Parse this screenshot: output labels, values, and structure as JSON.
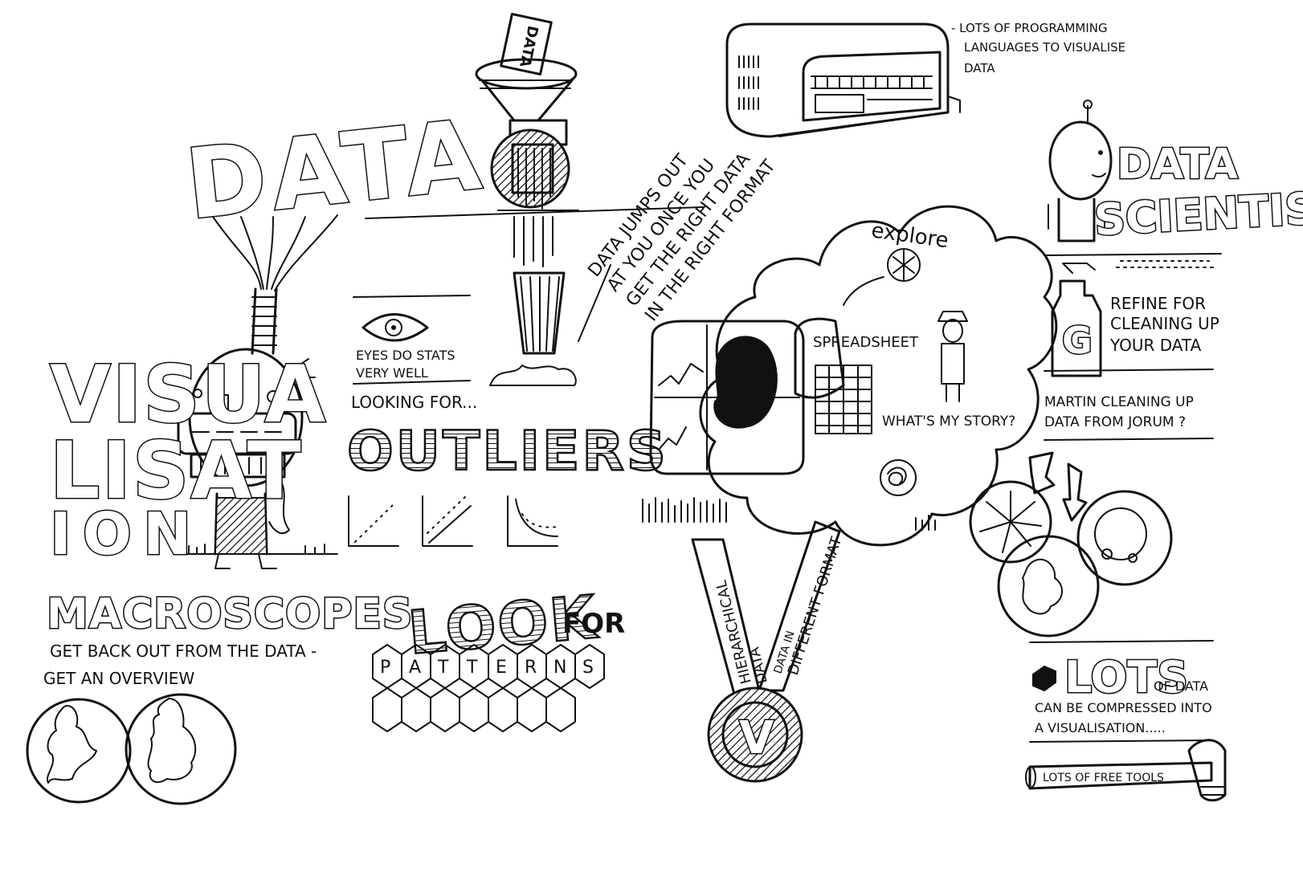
{
  "labels": {
    "data_big": "DATA",
    "data_label": "DATA",
    "visualisation_1": "VISUA",
    "visualisation_2": "LISAT",
    "visualisation_3": "ION",
    "eyes_1": "EYES DO STATS",
    "eyes_2": "VERY WELL",
    "looking_for": "LOOKING FOR...",
    "outliers": "OUTLIERS",
    "data_jumps_1": "DATA JUMPS OUT",
    "data_jumps_2": "AT YOU ONCE YOU",
    "data_jumps_3": "GET THE RIGHT DATA",
    "data_jumps_4": "IN THE RIGHT FORMAT",
    "languages_1": "- LOTS OF PROGRAMMING",
    "languages_2": "LANGUAGES TO VISUALISE",
    "languages_3": "DATA",
    "data_scientist_1": "DATA",
    "data_scientist_2": "SCIENTIST",
    "explore": "explore",
    "spreadsheet": "SPREADSHEET",
    "whats_my_story": "WHAT'S MY STORY?",
    "refine_1": "REFINE FOR",
    "refine_2": "CLEANING UP",
    "refine_3": "YOUR DATA",
    "refine_letter": "G",
    "martin_1": "MARTIN CLEANING UP",
    "martin_2": "DATA FROM JORUM ?",
    "macroscopes": "MACROSCOPES",
    "back_out_1": "GET BACK OUT FROM THE DATA -",
    "back_out_2": "GET AN OVERVIEW",
    "look_for_1": "LOOK",
    "look_for_2": "FOR",
    "patterns_letters": [
      "P",
      "A",
      "T",
      "T",
      "E",
      "R",
      "N",
      "S"
    ],
    "ribbon_left_1": "HIERARCHICAL",
    "ribbon_left_2": "DATA",
    "ribbon_right_1": "DATA IN",
    "ribbon_right_2": "DIFFERENT FORMAT",
    "medal_letter": "V",
    "lots_big": "LOTS",
    "lots_of_data": "OF DATA",
    "compressed_1": "CAN BE COMPRESSED INTO",
    "compressed_2": "A VISUALISATION.....",
    "free_tools": "LOTS OF FREE TOOLS"
  }
}
